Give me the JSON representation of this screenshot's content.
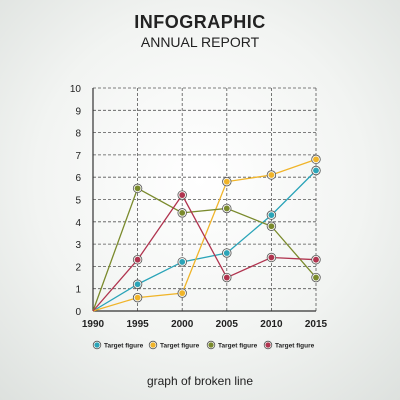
{
  "header": {
    "title": "INFOGRAPHIC",
    "subtitle": "ANNUAL REPORT"
  },
  "caption": "graph of broken line",
  "chart_data": {
    "type": "line",
    "x": [
      1990,
      1995,
      2000,
      2005,
      2010,
      2015
    ],
    "xticks": [
      "1990",
      "1995",
      "2000",
      "2005",
      "2010",
      "2015"
    ],
    "yticks": [
      "0",
      "1",
      "2",
      "3",
      "4",
      "5",
      "6",
      "7",
      "8",
      "9",
      "10"
    ],
    "ylim": [
      0,
      10
    ],
    "xlim": [
      1990,
      2015
    ],
    "grid": true,
    "legend_position": "bottom",
    "series": [
      {
        "name": "Target figure",
        "color": "#2aa4b8",
        "values": [
          0,
          1.2,
          2.2,
          2.6,
          4.3,
          6.3
        ]
      },
      {
        "name": "Target figure",
        "color": "#f0b429",
        "values": [
          0,
          0.6,
          0.8,
          5.8,
          6.1,
          6.8
        ]
      },
      {
        "name": "Target figure",
        "color": "#7a8a2c",
        "values": [
          0,
          5.5,
          4.4,
          4.6,
          3.8,
          1.5
        ]
      },
      {
        "name": "Target figure",
        "color": "#b0344f",
        "values": [
          0,
          2.3,
          5.2,
          1.5,
          2.4,
          2.3
        ]
      }
    ]
  }
}
